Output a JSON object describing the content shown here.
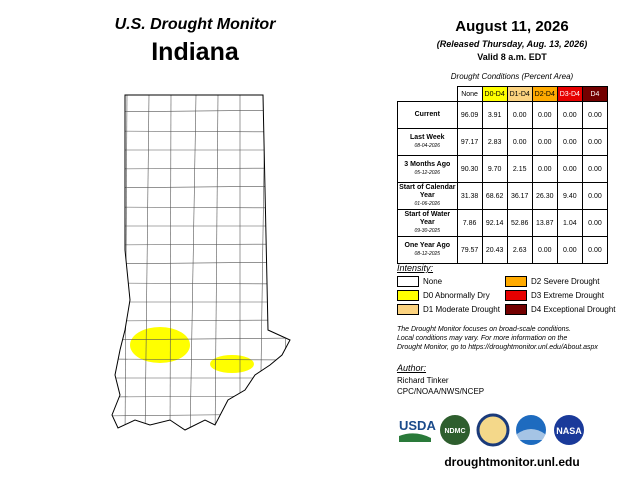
{
  "header": {
    "title": "U.S. Drought Monitor",
    "state": "Indiana",
    "date": "August 11, 2026",
    "released": "(Released Thursday, Aug. 13, 2026)",
    "valid": "Valid 8 a.m. EDT"
  },
  "table": {
    "caption": "Drought Conditions (Percent Area)",
    "columns": [
      {
        "label": "None",
        "color": "#ffffff",
        "text": "#000000"
      },
      {
        "label": "D0-D4",
        "color": "#ffff00",
        "text": "#000000"
      },
      {
        "label": "D1-D4",
        "color": "#fcd37f",
        "text": "#000000"
      },
      {
        "label": "D2-D4",
        "color": "#ffaa00",
        "text": "#000000"
      },
      {
        "label": "D3-D4",
        "color": "#e60000",
        "text": "#ffffff"
      },
      {
        "label": "D4",
        "color": "#730000",
        "text": "#ffffff"
      }
    ],
    "rows": [
      {
        "label": "Current",
        "values": [
          "96.09",
          "3.91",
          "0.00",
          "0.00",
          "0.00",
          "0.00"
        ]
      },
      {
        "label": "Last Week",
        "date": "08-04-2026",
        "values": [
          "97.17",
          "2.83",
          "0.00",
          "0.00",
          "0.00",
          "0.00"
        ]
      },
      {
        "label": "3 Months Ago",
        "date": "05-12-2026",
        "values": [
          "90.30",
          "9.70",
          "2.15",
          "0.00",
          "0.00",
          "0.00"
        ]
      },
      {
        "label": "Start of Calendar Year",
        "date": "01-06-2026",
        "values": [
          "31.38",
          "68.62",
          "36.17",
          "26.30",
          "9.40",
          "0.00"
        ]
      },
      {
        "label": "Start of Water Year",
        "date": "09-30-2025",
        "values": [
          "7.86",
          "92.14",
          "52.86",
          "13.87",
          "1.04",
          "0.00"
        ]
      },
      {
        "label": "One Year Ago",
        "date": "08-12-2025",
        "values": [
          "79.57",
          "20.43",
          "2.63",
          "0.00",
          "0.00",
          "0.00"
        ]
      }
    ]
  },
  "legend": {
    "title": "Intensity:",
    "items": [
      {
        "label": "None",
        "color": "#ffffff"
      },
      {
        "label": "D0 Abnormally Dry",
        "color": "#ffff00"
      },
      {
        "label": "D1 Moderate Drought",
        "color": "#fcd37f"
      },
      {
        "label": "D2 Severe Drought",
        "color": "#ffaa00"
      },
      {
        "label": "D3 Extreme Drought",
        "color": "#e60000"
      },
      {
        "label": "D4 Exceptional Drought",
        "color": "#730000"
      }
    ]
  },
  "note": [
    "The Drought Monitor focuses on broad-scale conditions.",
    "Local conditions may vary. For more information on the",
    "Drought Monitor, go to https://droughtmonitor.unl.edu/About.aspx"
  ],
  "author": {
    "heading": "Author:",
    "name": "Richard Tinker",
    "org": "CPC/NOAA/NWS/NCEP"
  },
  "logos": {
    "usda": "USDA",
    "ndmc": "NDMC",
    "nasa": "NASA"
  },
  "url": "droughtmonitor.unl.edu"
}
